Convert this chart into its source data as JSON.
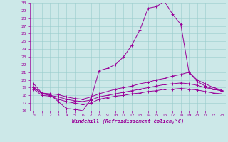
{
  "xlabel": "Windchill (Refroidissement éolien,°C)",
  "bg_color": "#cce8e8",
  "line_color": "#990099",
  "grid_color": "#99cccc",
  "xlim": [
    -0.5,
    23.5
  ],
  "ylim": [
    16,
    30
  ],
  "yticks": [
    16,
    17,
    18,
    19,
    20,
    21,
    22,
    23,
    24,
    25,
    26,
    27,
    28,
    29,
    30
  ],
  "xticks": [
    0,
    1,
    2,
    3,
    4,
    5,
    6,
    7,
    8,
    9,
    10,
    11,
    12,
    13,
    14,
    15,
    16,
    17,
    18,
    19,
    20,
    21,
    22,
    23
  ],
  "lines": [
    {
      "x": [
        0,
        1,
        2,
        3,
        4,
        5,
        6,
        7,
        8,
        9,
        10,
        11,
        12,
        13,
        14,
        15,
        16,
        17,
        18,
        19,
        20,
        21,
        22,
        23
      ],
      "y": [
        19.5,
        18.3,
        18.1,
        17.2,
        16.3,
        16.2,
        16.0,
        17.5,
        21.2,
        21.5,
        22.0,
        23.0,
        24.5,
        26.5,
        29.3,
        29.5,
        30.2,
        28.5,
        27.2,
        21.0,
        19.8,
        19.2,
        18.8,
        18.6
      ]
    },
    {
      "x": [
        0,
        1,
        2,
        3,
        4,
        5,
        6,
        7,
        8,
        9,
        10,
        11,
        12,
        13,
        14,
        15,
        16,
        17,
        18,
        19,
        20,
        21,
        22,
        23
      ],
      "y": [
        19.0,
        18.3,
        18.2,
        18.1,
        17.8,
        17.6,
        17.5,
        17.8,
        18.2,
        18.5,
        18.8,
        19.0,
        19.2,
        19.5,
        19.7,
        20.0,
        20.2,
        20.5,
        20.7,
        21.0,
        20.0,
        19.5,
        19.0,
        18.7
      ]
    },
    {
      "x": [
        0,
        1,
        2,
        3,
        4,
        5,
        6,
        7,
        8,
        9,
        10,
        11,
        12,
        13,
        14,
        15,
        16,
        17,
        18,
        19,
        20,
        21,
        22,
        23
      ],
      "y": [
        19.0,
        18.2,
        18.0,
        17.8,
        17.5,
        17.3,
        17.2,
        17.4,
        17.8,
        18.0,
        18.2,
        18.4,
        18.6,
        18.8,
        19.0,
        19.2,
        19.4,
        19.5,
        19.6,
        19.5,
        19.3,
        19.0,
        18.8,
        18.6
      ]
    },
    {
      "x": [
        0,
        1,
        2,
        3,
        4,
        5,
        6,
        7,
        8,
        9,
        10,
        11,
        12,
        13,
        14,
        15,
        16,
        17,
        18,
        19,
        20,
        21,
        22,
        23
      ],
      "y": [
        18.8,
        18.0,
        17.9,
        17.5,
        17.2,
        17.0,
        16.8,
        17.0,
        17.5,
        17.7,
        17.9,
        18.0,
        18.2,
        18.3,
        18.5,
        18.6,
        18.8,
        18.8,
        18.9,
        18.8,
        18.7,
        18.5,
        18.3,
        18.2
      ]
    }
  ]
}
